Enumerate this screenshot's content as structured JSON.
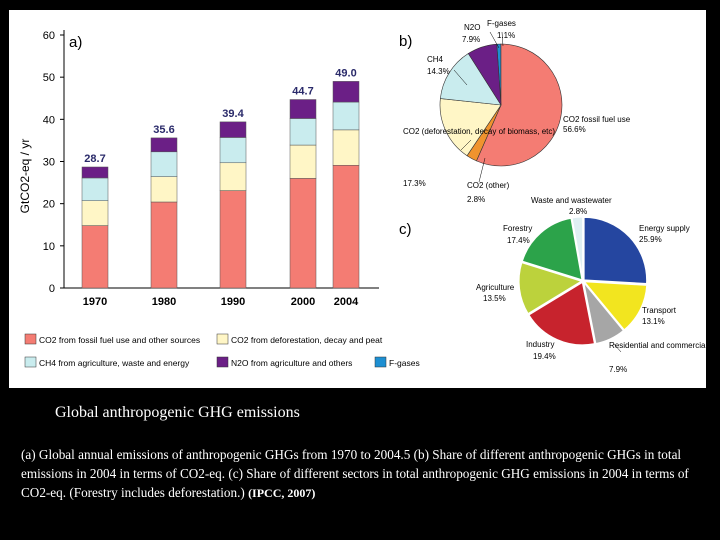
{
  "caption": {
    "title": "Global anthropogenic GHG emissions",
    "body": "(a) Global annual emissions of anthropogenic GHGs from 1970 to 2004.5 (b) Share of different anthropogenic GHGs in total emissions in 2004 in terms of CO2-eq. (c) Share of different sectors in total anthropogenic GHG emissions in 2004 in terms of CO2-eq. (Forestry includes deforestation.)",
    "citation": "(IPCC, 2007)"
  },
  "chart_data": [
    {
      "type": "bar",
      "panel_label": "a)",
      "stacked": true,
      "ylabel": "GtCO2-eq / yr",
      "ylim": [
        0,
        60
      ],
      "yticks": [
        0,
        10,
        20,
        30,
        40,
        50,
        60
      ],
      "categories": [
        "1970",
        "1980",
        "1990",
        "2000",
        "2004"
      ],
      "totals": [
        "28.7",
        "35.6",
        "39.4",
        "44.7",
        "49.0"
      ],
      "series": [
        {
          "name": "CO2 from fossil fuel use and other sources",
          "color": "#f47c73",
          "values": [
            14.8,
            20.4,
            23.1,
            26.0,
            29.1
          ]
        },
        {
          "name": "CO2 from deforestation, decay and peat",
          "color": "#fff6c6",
          "values": [
            5.9,
            6.0,
            6.6,
            7.9,
            8.4
          ]
        },
        {
          "name": "CH4 from agriculture, waste and energy",
          "color": "#c9ecee",
          "values": [
            5.4,
            5.9,
            6.0,
            6.3,
            6.6
          ]
        },
        {
          "name": "N2O from agriculture and others",
          "color": "#6b1f86",
          "values": [
            2.6,
            3.3,
            3.7,
            4.5,
            4.9
          ]
        },
        {
          "name": "F-gases",
          "color": "#1d8fd2",
          "values": [
            0.0,
            0.0,
            0.0,
            0.0,
            0.0
          ]
        }
      ]
    },
    {
      "type": "pie",
      "panel_label": "b)",
      "slices": [
        {
          "label": "CO2 fossil fuel use",
          "value": 56.6,
          "value_label": "56.6%",
          "color": "#f47c73"
        },
        {
          "label": "CO2 (other)",
          "value": 2.8,
          "value_label": "2.8%",
          "color": "#f0932e"
        },
        {
          "label": "CO2 (deforestation, decay of biomass, etc)",
          "value": 17.3,
          "value_label": "17.3%",
          "color": "#fff6c6"
        },
        {
          "label": "CH4",
          "value": 14.3,
          "value_label": "14.3%",
          "color": "#c9ecee"
        },
        {
          "label": "N2O",
          "value": 7.9,
          "value_label": "7.9%",
          "color": "#6b1f86"
        },
        {
          "label": "F-gases",
          "value": 1.1,
          "value_label": "1.1%",
          "color": "#1d8fd2"
        }
      ]
    },
    {
      "type": "pie",
      "panel_label": "c)",
      "slices": [
        {
          "label": "Energy supply",
          "value": 25.9,
          "value_label": "25.9%",
          "color": "#2546a0"
        },
        {
          "label": "Transport",
          "value": 13.1,
          "value_label": "13.1%",
          "color": "#f2e51f"
        },
        {
          "label": "Residential and commercial buildings",
          "value": 7.9,
          "value_label": "7.9%",
          "color": "#a6a6a6"
        },
        {
          "label": "Industry",
          "value": 19.4,
          "value_label": "19.4%",
          "color": "#c7232d"
        },
        {
          "label": "Agriculture",
          "value": 13.5,
          "value_label": "13.5%",
          "color": "#bcd23c"
        },
        {
          "label": "Forestry",
          "value": 17.4,
          "value_label": "17.4%",
          "color": "#2ca34a"
        },
        {
          "label": "Waste and wastewater",
          "value": 2.8,
          "value_label": "2.8%",
          "color": "#dfeff3"
        }
      ]
    }
  ]
}
